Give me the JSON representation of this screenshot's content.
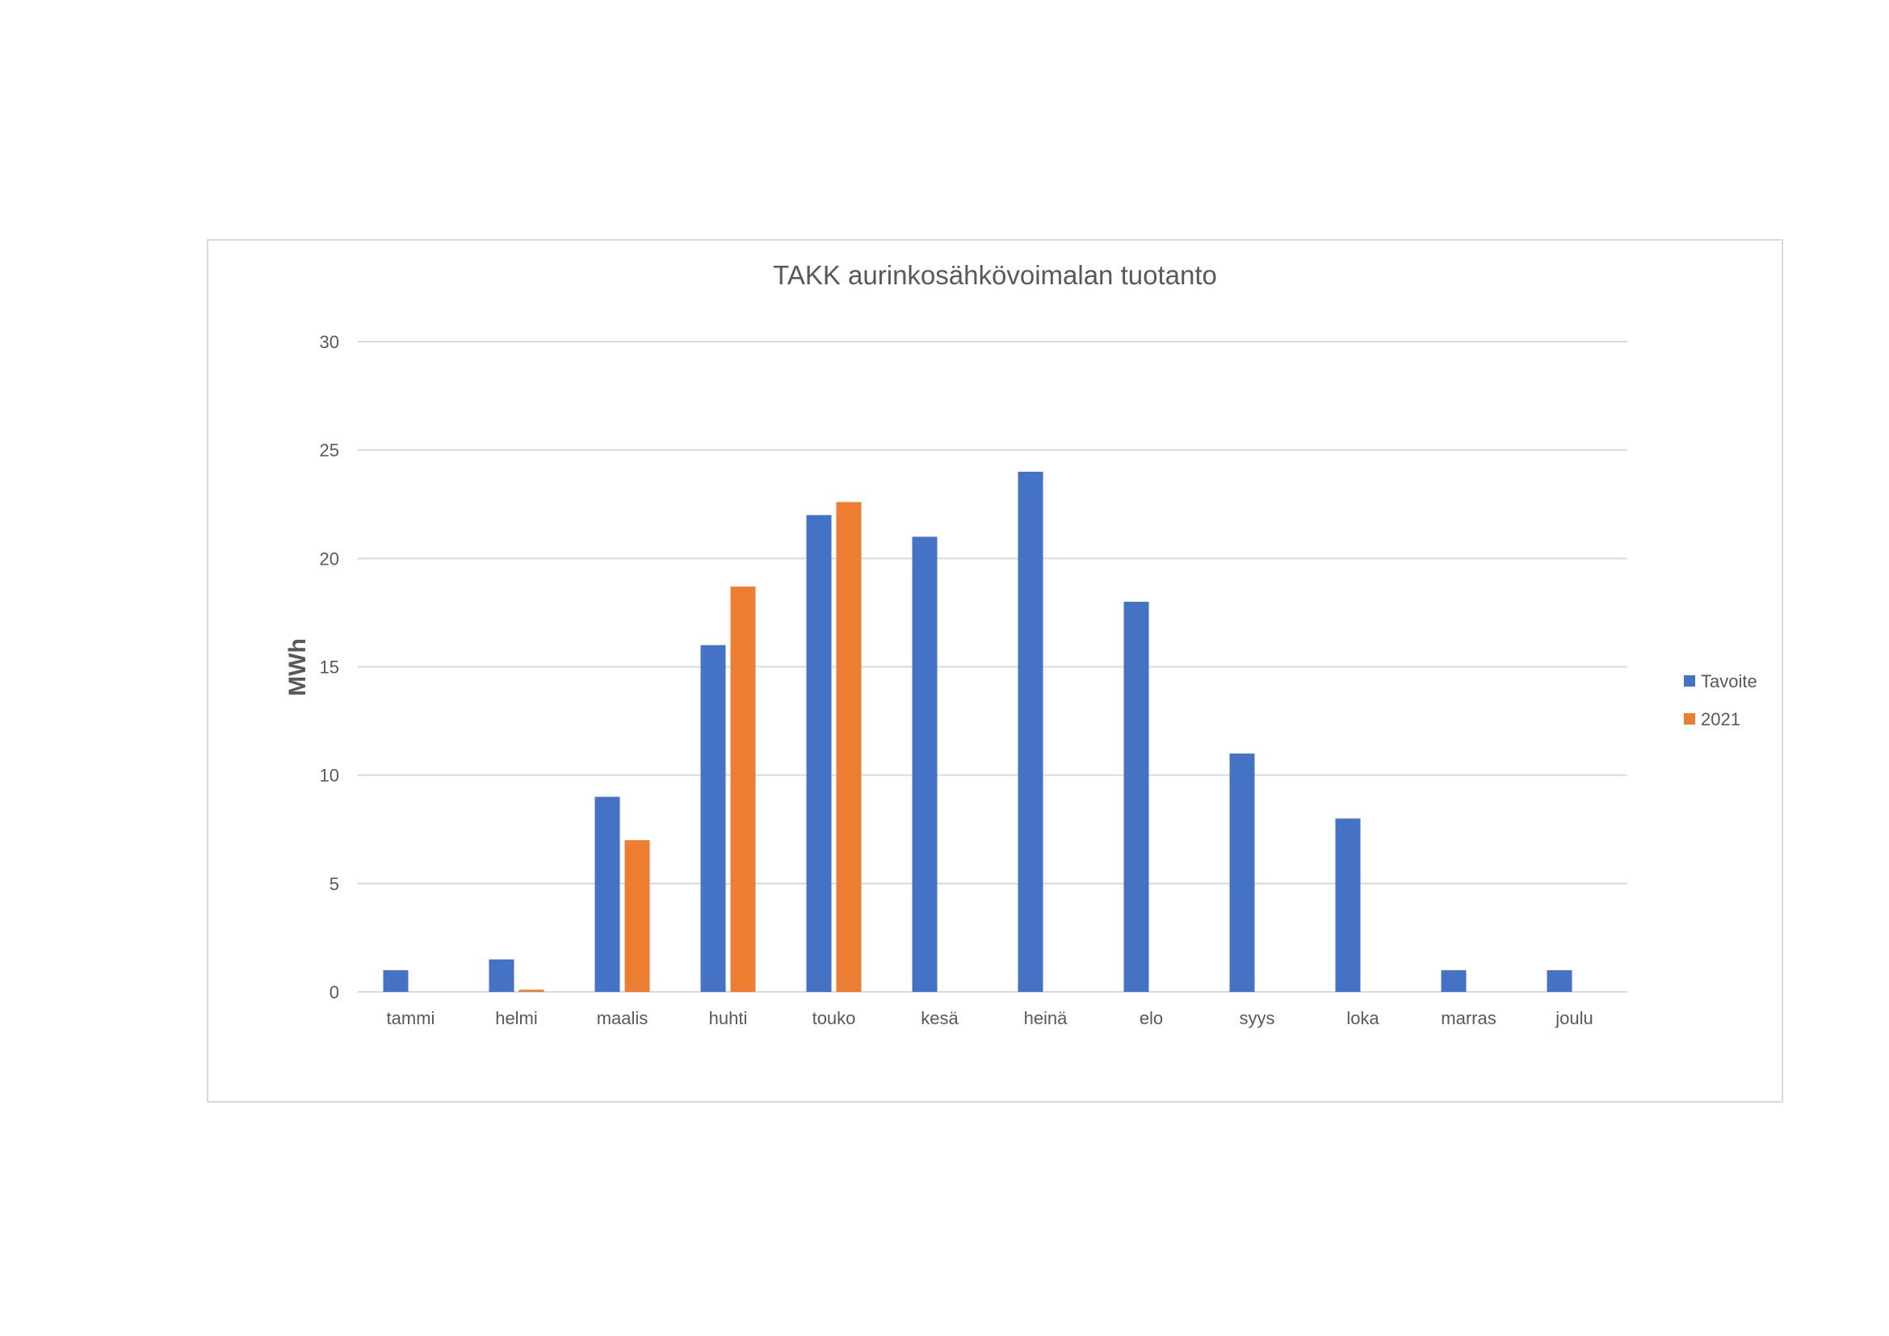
{
  "chart_data": {
    "type": "bar",
    "title": "TAKK aurinkosähkövoimalan tuotanto",
    "ylabel": "MWh",
    "xlabel": "",
    "categories": [
      "tammi",
      "helmi",
      "maalis",
      "huhti",
      "touko",
      "kesä",
      "heinä",
      "elo",
      "syys",
      "loka",
      "marras",
      "joulu"
    ],
    "series": [
      {
        "name": "Tavoite",
        "color": "#4472c4",
        "values": [
          1,
          1.5,
          9,
          16,
          22,
          21,
          24,
          18,
          11,
          8,
          1,
          1
        ]
      },
      {
        "name": "2021",
        "color": "#ed7d31",
        "values": [
          0,
          0.1,
          7,
          18.7,
          22.6,
          0,
          0,
          0,
          0,
          0,
          0,
          0
        ]
      }
    ],
    "ylim": [
      0,
      30
    ],
    "yticks": [
      0,
      5,
      10,
      15,
      20,
      25,
      30
    ],
    "grid": true,
    "legend_position": "right"
  }
}
